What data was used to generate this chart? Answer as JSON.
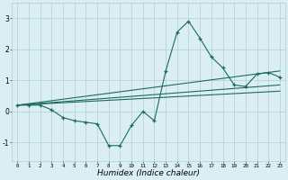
{
  "xlabel": "Humidex (Indice chaleur)",
  "ylabel": "",
  "xlim": [
    -0.5,
    23.5
  ],
  "ylim": [
    -1.6,
    3.5
  ],
  "xticks": [
    0,
    1,
    2,
    3,
    4,
    5,
    6,
    7,
    8,
    9,
    10,
    11,
    12,
    13,
    14,
    15,
    16,
    17,
    18,
    19,
    20,
    21,
    22,
    23
  ],
  "yticks": [
    -1,
    0,
    1,
    2,
    3
  ],
  "bg_color": "#daeef3",
  "grid_color": "#aecfdc",
  "line_color": "#1a6b5a",
  "data_x": [
    0,
    1,
    2,
    3,
    4,
    5,
    6,
    7,
    8,
    9,
    10,
    11,
    12,
    13,
    14,
    15,
    16,
    17,
    18,
    19,
    20,
    21,
    22,
    23
  ],
  "data_y": [
    0.2,
    0.2,
    0.2,
    0.05,
    -0.2,
    -0.3,
    -0.35,
    -0.4,
    -1.1,
    -1.1,
    -0.45,
    0.0,
    -0.3,
    1.3,
    2.55,
    2.9,
    2.35,
    1.75,
    1.4,
    0.85,
    0.8,
    1.2,
    1.25,
    1.1
  ],
  "trend1_x": [
    0,
    23
  ],
  "trend1_y": [
    0.2,
    1.3
  ],
  "trend2_x": [
    0,
    23
  ],
  "trend2_y": [
    0.2,
    0.85
  ],
  "trend3_x": [
    0,
    23
  ],
  "trend3_y": [
    0.2,
    0.65
  ]
}
